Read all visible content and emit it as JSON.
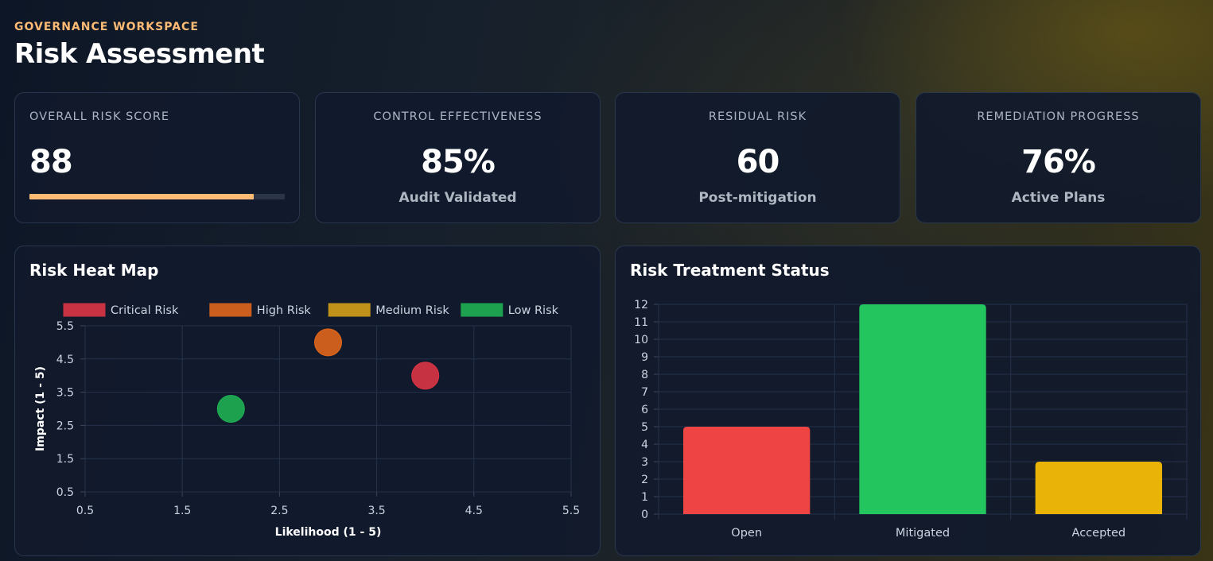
{
  "header": {
    "eyebrow": "GOVERNANCE WORKSPACE",
    "title": "Risk Assessment"
  },
  "kpis": [
    {
      "label": "OVERALL RISK SCORE",
      "value": "88",
      "progress": 0.88,
      "progress_color": "#fdba74"
    },
    {
      "label": "CONTROL EFFECTIVENESS",
      "value": "85%",
      "sub": "Audit Validated"
    },
    {
      "label": "RESIDUAL RISK",
      "value": "60",
      "sub": "Post-mitigation"
    },
    {
      "label": "REMEDIATION PROGRESS",
      "value": "76%",
      "sub": "Active Plans"
    }
  ],
  "heatmap": {
    "title": "Risk Heat Map",
    "chart_data": {
      "type": "scatter",
      "xlabel": "Likelihood (1 - 5)",
      "ylabel": "Impact (1 - 5)",
      "xlim": [
        0.5,
        5.5
      ],
      "ylim": [
        0.5,
        5.5
      ],
      "x_ticks": [
        "0.5",
        "1.5",
        "2.5",
        "3.5",
        "4.5",
        "5.5"
      ],
      "y_ticks": [
        "5.5",
        "4.5",
        "3.5",
        "2.5",
        "1.5",
        "0.5"
      ],
      "legend_position": "top",
      "series": [
        {
          "name": "Critical Risk",
          "color": "#dc3545",
          "points": [
            {
              "x": 4,
              "y": 4
            }
          ]
        },
        {
          "name": "High Risk",
          "color": "#e0661b",
          "points": [
            {
              "x": 3,
              "y": 5
            }
          ]
        },
        {
          "name": "Medium Risk",
          "color": "#d4a017",
          "points": []
        },
        {
          "name": "Low Risk",
          "color": "#1fb053",
          "points": [
            {
              "x": 2,
              "y": 3
            }
          ]
        }
      ]
    }
  },
  "treatment": {
    "title": "Risk Treatment Status",
    "chart_data": {
      "type": "bar",
      "categories": [
        "Open",
        "Mitigated",
        "Accepted"
      ],
      "values": [
        5,
        12,
        3
      ],
      "colors": [
        "#ef4444",
        "#22c55e",
        "#eab308"
      ],
      "ylim": [
        0,
        12
      ],
      "y_ticks": [
        "12",
        "11",
        "10",
        "9",
        "8",
        "7",
        "6",
        "5",
        "4",
        "3",
        "2",
        "1",
        "0"
      ]
    }
  }
}
